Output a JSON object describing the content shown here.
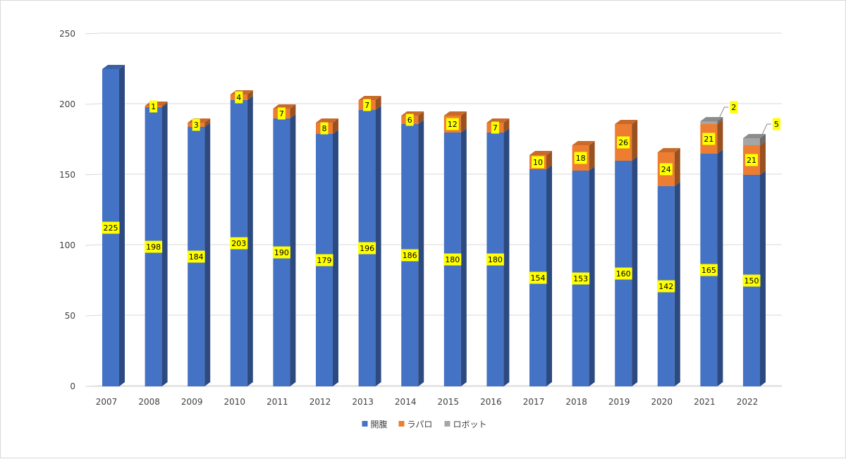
{
  "chart_data": {
    "type": "bar",
    "stacked": true,
    "style": "3d-column",
    "categories": [
      "2007",
      "2008",
      "2009",
      "2010",
      "2011",
      "2012",
      "2013",
      "2014",
      "2015",
      "2016",
      "2017",
      "2018",
      "2019",
      "2020",
      "2021",
      "2022"
    ],
    "series": [
      {
        "name": "開腹",
        "color": "#4472C4",
        "values": [
          225,
          198,
          184,
          203,
          190,
          179,
          196,
          186,
          180,
          180,
          154,
          153,
          160,
          142,
          165,
          150
        ]
      },
      {
        "name": "ラパロ",
        "color": "#ED7D31",
        "values": [
          0,
          1,
          3,
          4,
          7,
          8,
          7,
          6,
          12,
          7,
          10,
          18,
          26,
          24,
          21,
          21
        ]
      },
      {
        "name": "ロボット",
        "color": "#A5A5A5",
        "values": [
          0,
          0,
          0,
          0,
          0,
          0,
          0,
          0,
          0,
          0,
          0,
          0,
          0,
          0,
          2,
          5
        ]
      }
    ],
    "y_ticks": [
      "0",
      "50",
      "100",
      "150",
      "200",
      "250"
    ],
    "ylim": [
      0,
      250
    ],
    "grid": true,
    "legend_position": "bottom",
    "data_label_fill": "#FFFF00"
  }
}
